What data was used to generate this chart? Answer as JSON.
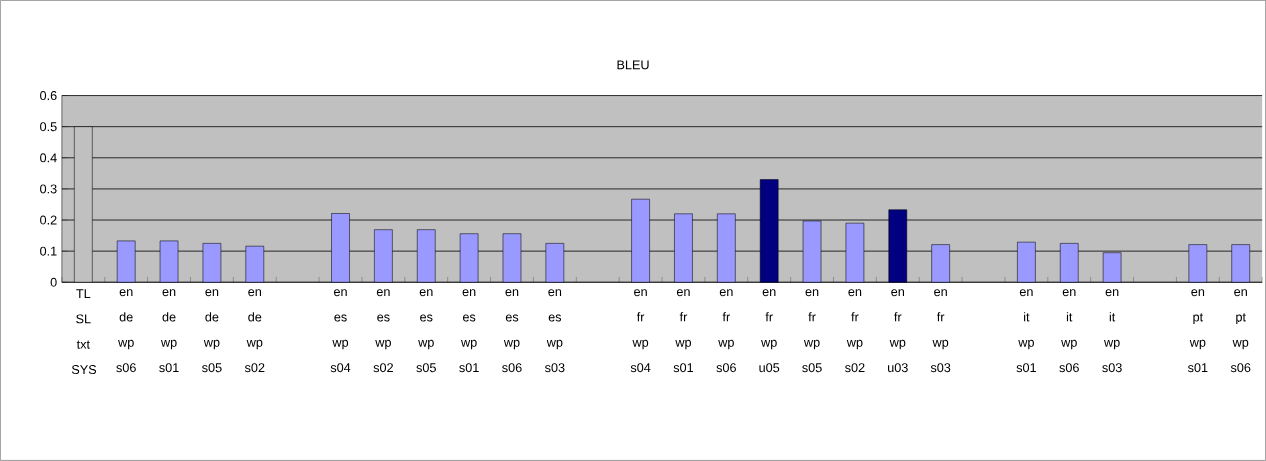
{
  "chart_data": {
    "type": "bar",
    "title": "BLEU",
    "categories": [
      "TL SL txt SYS",
      "en de wp s06",
      "en de wp s01",
      "en de wp s05",
      "en de wp s02",
      null,
      "en es wp s04",
      "en es wp s02",
      "en es wp s05",
      "en es wp s01",
      "en es wp s06",
      "en es wp s03",
      null,
      "en fr wp s04",
      "en fr wp s01",
      "en fr wp s06",
      "en fr wp u05",
      "en fr wp s05",
      "en fr wp s02",
      "en fr wp u03",
      "en fr wp s03",
      null,
      "en it wp s01",
      "en it wp s06",
      "en it wp s03",
      null,
      "en pt wp s01",
      "en pt wp s06"
    ],
    "values": [
      0.5,
      0.133,
      0.133,
      0.125,
      0.116,
      null,
      0.221,
      0.169,
      0.169,
      0.156,
      0.156,
      0.125,
      null,
      0.267,
      0.22,
      0.22,
      0.33,
      0.197,
      0.19,
      0.233,
      0.121,
      null,
      0.129,
      0.125,
      0.095,
      null,
      0.121,
      0.121
    ],
    "colors": [
      "#c0c0c0",
      "#9999ff",
      "#9999ff",
      "#9999ff",
      "#9999ff",
      "#9999ff",
      "#9999ff",
      "#9999ff",
      "#9999ff",
      "#9999ff",
      "#9999ff",
      "#9999ff",
      "#9999ff",
      "#9999ff",
      "#9999ff",
      "#9999ff",
      "#000080",
      "#9999ff",
      "#9999ff",
      "#000080",
      "#9999ff",
      "#9999ff",
      "#9999ff",
      "#9999ff",
      "#9999ff",
      "#9999ff",
      "#9999ff",
      "#9999ff"
    ],
    "ylim": [
      0,
      0.6
    ],
    "yticks": [
      0,
      0.1,
      0.2,
      0.3,
      0.4,
      0.5,
      0.6
    ],
    "grid": "y"
  }
}
